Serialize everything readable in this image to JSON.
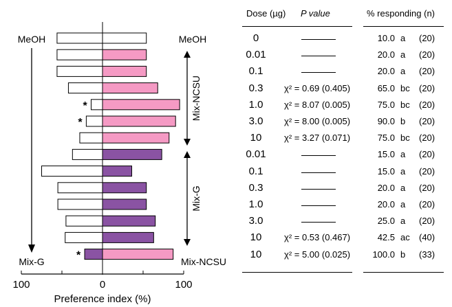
{
  "colors": {
    "pink": "#f59ac4",
    "purple": "#8a53a3",
    "outline": "#000000",
    "white": "#ffffff"
  },
  "chart_data": {
    "type": "bar",
    "orientation": "horizontal-diverging",
    "xlabel": "Preference index (%)",
    "xticks": [
      "100",
      "0",
      "100"
    ],
    "xlim": [
      -100,
      100
    ],
    "left_labels": {
      "top": "MeOH",
      "bottom": "Mix-G"
    },
    "right_labels": {
      "top": "MeOH",
      "bottom": "Mix-NCSU"
    },
    "bracket_labels": [
      "Mix-NCSU",
      "Mix-G"
    ],
    "rows": [
      {
        "left": 56,
        "right": 54,
        "left_fill": "white",
        "right_fill": "white",
        "star": ""
      },
      {
        "left": 56,
        "right": 54,
        "left_fill": "white",
        "right_fill": "pink",
        "star": ""
      },
      {
        "left": 56,
        "right": 54,
        "left_fill": "white",
        "right_fill": "pink",
        "star": ""
      },
      {
        "left": 42,
        "right": 68,
        "left_fill": "white",
        "right_fill": "pink",
        "star": ""
      },
      {
        "left": 14,
        "right": 95,
        "left_fill": "white",
        "right_fill": "pink",
        "star": "*"
      },
      {
        "left": 20,
        "right": 90,
        "left_fill": "white",
        "right_fill": "pink",
        "star": "*"
      },
      {
        "left": 28,
        "right": 82,
        "left_fill": "white",
        "right_fill": "pink",
        "star": ""
      },
      {
        "left": 37,
        "right": 73,
        "left_fill": "white",
        "right_fill": "purple",
        "star": ""
      },
      {
        "left": 75,
        "right": 36,
        "left_fill": "white",
        "right_fill": "purple",
        "star": ""
      },
      {
        "left": 55,
        "right": 54,
        "left_fill": "white",
        "right_fill": "purple",
        "star": ""
      },
      {
        "left": 55,
        "right": 54,
        "left_fill": "white",
        "right_fill": "purple",
        "star": ""
      },
      {
        "left": 45,
        "right": 65,
        "left_fill": "white",
        "right_fill": "purple",
        "star": ""
      },
      {
        "left": 46,
        "right": 63,
        "left_fill": "white",
        "right_fill": "purple",
        "star": ""
      },
      {
        "left": 22,
        "right": 87,
        "left_fill": "purple",
        "right_fill": "pink",
        "star": "*"
      }
    ]
  },
  "table": {
    "headers": {
      "dose": "Dose (µg)",
      "pvalue": "P value",
      "pct": "% responding (n)"
    },
    "rows": [
      {
        "dose": "0",
        "p": "",
        "pct": "10.0",
        "grp": "a",
        "n": "(20)"
      },
      {
        "dose": "0.01",
        "p": "",
        "pct": "20.0",
        "grp": "a",
        "n": "(20)"
      },
      {
        "dose": "0.1",
        "p": "",
        "pct": "20.0",
        "grp": "a",
        "n": "(20)"
      },
      {
        "dose": "0.3",
        "p": "χ² = 0.69 (0.405)",
        "pct": "65.0",
        "grp": "bc",
        "n": "(20)"
      },
      {
        "dose": "1.0",
        "p": "χ² = 8.07 (0.005)",
        "pct": "75.0",
        "grp": "bc",
        "n": "(20)"
      },
      {
        "dose": "3.0",
        "p": "χ² = 8.00 (0.005)",
        "pct": "90.0",
        "grp": "b",
        "n": "(20)"
      },
      {
        "dose": "10",
        "p": "χ² = 3.27 (0.071)",
        "pct": "75.0",
        "grp": "bc",
        "n": "(20)"
      },
      {
        "dose": "0.01",
        "p": "",
        "pct": "15.0",
        "grp": "a",
        "n": "(20)"
      },
      {
        "dose": "0.1",
        "p": "",
        "pct": "15.0",
        "grp": "a",
        "n": "(20)"
      },
      {
        "dose": "0.3",
        "p": "",
        "pct": "20.0",
        "grp": "a",
        "n": "(20)"
      },
      {
        "dose": "1.0",
        "p": "",
        "pct": "20.0",
        "grp": "a",
        "n": "(20)"
      },
      {
        "dose": "3.0",
        "p": "",
        "pct": "25.0",
        "grp": "a",
        "n": "(20)"
      },
      {
        "dose": "10",
        "p": "χ² = 0.53 (0.467)",
        "pct": "42.5",
        "grp": "ac",
        "n": "(40)"
      },
      {
        "dose": "10",
        "p": "χ² = 5.00 (0.025)",
        "pct": "100.0",
        "grp": "b",
        "n": "(33)"
      }
    ]
  }
}
